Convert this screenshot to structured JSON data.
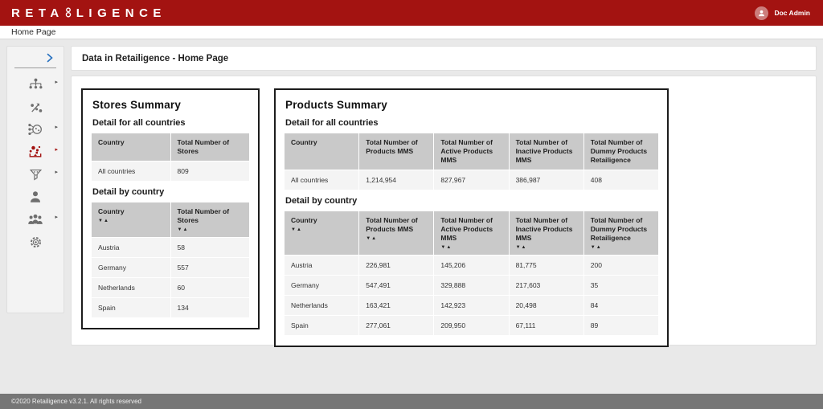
{
  "header": {
    "logo_prefix": "RETA",
    "logo_suffix": "LIGENCE",
    "user_name": "Doc Admin"
  },
  "nav": {
    "home_label": "Home Page"
  },
  "page": {
    "title": "Data in Retailigence - Home Page"
  },
  "sort_indicator": "▼▲",
  "sidebar": {
    "items": [
      {
        "name": "org-chart",
        "has_submenu": true,
        "active": false
      },
      {
        "name": "network-nodes",
        "has_submenu": false,
        "active": false
      },
      {
        "name": "share-network",
        "has_submenu": true,
        "active": false
      },
      {
        "name": "data-analysis",
        "has_submenu": true,
        "active": true
      },
      {
        "name": "funnel",
        "has_submenu": true,
        "active": false
      },
      {
        "name": "user",
        "has_submenu": false,
        "active": false
      },
      {
        "name": "users-group",
        "has_submenu": true,
        "active": false
      },
      {
        "name": "settings-gear",
        "has_submenu": false,
        "active": false
      }
    ]
  },
  "stores_summary": {
    "title": "Stores Summary",
    "all_countries": {
      "heading": "Detail for all countries",
      "columns": [
        "Country",
        "Total Number of Stores"
      ],
      "sortable": false,
      "rows": [
        [
          "All countries",
          "809"
        ]
      ]
    },
    "by_country": {
      "heading": "Detail by country",
      "columns": [
        "Country",
        "Total Number of Stores"
      ],
      "sortable": true,
      "rows": [
        [
          "Austria",
          "58"
        ],
        [
          "Germany",
          "557"
        ],
        [
          "Netherlands",
          "60"
        ],
        [
          "Spain",
          "134"
        ]
      ]
    }
  },
  "products_summary": {
    "title": "Products Summary",
    "all_countries": {
      "heading": "Detail for all countries",
      "columns": [
        "Country",
        "Total Number of Products MMS",
        "Total Number of Active Products MMS",
        "Total Number of Inactive Products MMS",
        "Total Number of Dummy Products Retailigence"
      ],
      "sortable": false,
      "rows": [
        [
          "All countries",
          "1,214,954",
          "827,967",
          "386,987",
          "408"
        ]
      ]
    },
    "by_country": {
      "heading": "Detail by country",
      "columns": [
        "Country",
        "Total Number of Products MMS",
        "Total Number of Active Products MMS",
        "Total Number of Inactive Products MMS",
        "Total Number of Dummy Products Retailigence"
      ],
      "sortable": true,
      "rows": [
        [
          "Austria",
          "226,981",
          "145,206",
          "81,775",
          "200"
        ],
        [
          "Germany",
          "547,491",
          "329,888",
          "217,603",
          "35"
        ],
        [
          "Netherlands",
          "163,421",
          "142,923",
          "20,498",
          "84"
        ],
        [
          "Spain",
          "277,061",
          "209,950",
          "67,111",
          "89"
        ]
      ]
    }
  },
  "footer": {
    "copyright": "©2020 Retailigence v3.2.1. All rights reserved"
  },
  "colors": {
    "brand_red": "#a31311",
    "accent_blue": "#2570bf",
    "table_header_gray": "#c9c9c9",
    "footer_gray": "#767676"
  }
}
